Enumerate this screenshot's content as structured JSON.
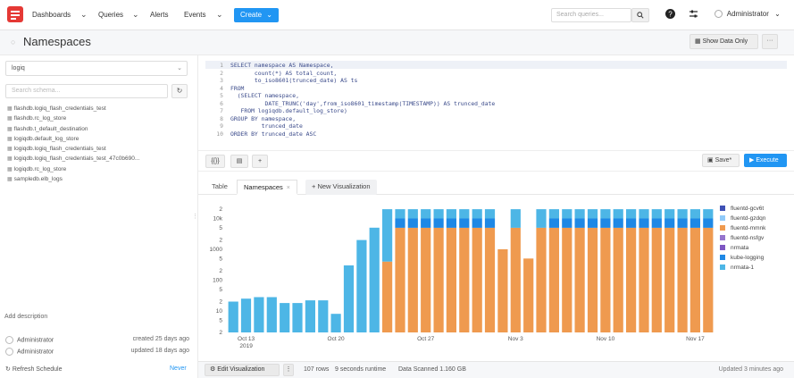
{
  "nav": {
    "items": [
      {
        "label": "Dashboards",
        "has_caret": true
      },
      {
        "label": "Queries",
        "has_caret": true
      },
      {
        "label": "Alerts",
        "has_caret": false
      },
      {
        "label": "Events",
        "has_caret": true
      }
    ],
    "create_label": "Create",
    "search_placeholder": "Search queries...",
    "search_icon": "search-icon",
    "help_icon": "help-icon",
    "settings_icon": "settings-icon",
    "user_name": "Administrator"
  },
  "page": {
    "title": "Namespaces",
    "show_data_label": "Show Data Only",
    "more_label": "···"
  },
  "sidebar": {
    "datasource": "logiq",
    "schema_search_placeholder": "Search schema...",
    "tables": [
      "flashdb.logiq_flash_credentials_test",
      "flashdb.rc_log_store",
      "flashdb.t_default_destination",
      "logiqdb.default_log_store",
      "logiqdb.logiq_flash_credentials_test",
      "logiqdb.logiq_flash_credentials_test_47c0b690...",
      "logiqdb.rc_log_store",
      "sampledb.elb_logs"
    ],
    "add_description": "Add description",
    "created_by": "Administrator",
    "created_when": "created 25 days ago",
    "updated_by": "Administrator",
    "updated_when": "updated 18 days ago",
    "refresh_schedule": "Refresh Schedule",
    "refresh_value": "Never"
  },
  "editor": {
    "lines": [
      "SELECT namespace AS Namespace,",
      "       count(*) AS total_count,",
      "       to_iso8601(trunced_date) AS ts",
      "FROM",
      "  (SELECT namespace,",
      "          DATE_TRUNC('day',from_iso8601_timestamp(TIMESTAMP)) AS trunced_date",
      "   FROM logiqdb.default_log_store)",
      "GROUP BY namespace,",
      "         trunced_date",
      "ORDER BY trunced_date ASC"
    ],
    "toolbar": {
      "format_label": "{{}}",
      "schema_label": "▤",
      "add_label": "+"
    },
    "save_label": "Save*",
    "execute_label": "Execute"
  },
  "results": {
    "tabs": [
      {
        "label": "Table",
        "active": false
      },
      {
        "label": "Namespaces",
        "active": true,
        "closable": "×"
      },
      {
        "label": "+ New Visualization",
        "active": false
      }
    ]
  },
  "footer": {
    "edit_vis_label": "Edit Visualization",
    "more_label": "⋮",
    "rows": "107 rows",
    "runtime": "9 seconds runtime",
    "scanned": "Data Scanned 1.160 GB",
    "updated": "Updated 3 minutes ago"
  },
  "chart_data": {
    "type": "bar",
    "stacked": true,
    "log_scale": true,
    "y_ticks": [
      "2",
      "10k",
      "5",
      "2",
      "1000",
      "5",
      "2",
      "100",
      "5",
      "2",
      "10",
      "5",
      "2"
    ],
    "x_ticks": [
      "Oct 13\n2019",
      "Oct 20",
      "Oct 27",
      "Nov 3",
      "Nov 10",
      "Nov 17"
    ],
    "legend_position": "right",
    "series": [
      {
        "name": "fluentd-gcv6t",
        "color": "#3f51b5"
      },
      {
        "name": "fluentd-gzdqn",
        "color": "#90caf9"
      },
      {
        "name": "fluentd-mmnk",
        "color": "#ef9a4f"
      },
      {
        "name": "fluentd-nsfgv",
        "color": "#9575cd"
      },
      {
        "name": "nrmata",
        "color": "#7e57c2"
      },
      {
        "name": "kube-logging",
        "color": "#1e88e5"
      },
      {
        "name": "nrmata-1",
        "color": "#4db6e6"
      }
    ],
    "bars": [
      {
        "date": "Oct 12",
        "segments": {
          "nrmata-1": 20
        }
      },
      {
        "date": "Oct 13",
        "segments": {
          "nrmata-1": 25
        }
      },
      {
        "date": "Oct 14",
        "segments": {
          "nrmata-1": 28
        }
      },
      {
        "date": "Oct 15",
        "segments": {
          "nrmata-1": 28
        }
      },
      {
        "date": "Oct 16",
        "segments": {
          "nrmata-1": 18
        }
      },
      {
        "date": "Oct 17",
        "segments": {
          "nrmata-1": 18
        }
      },
      {
        "date": "Oct 18",
        "segments": {
          "nrmata-1": 22
        }
      },
      {
        "date": "Oct 19",
        "segments": {
          "nrmata-1": 22
        }
      },
      {
        "date": "Oct 20",
        "segments": {
          "nrmata-1": 8
        }
      },
      {
        "date": "Oct 21",
        "segments": {
          "nrmata-1": 300
        }
      },
      {
        "date": "Oct 22",
        "segments": {
          "nrmata-1": 2000
        }
      },
      {
        "date": "Oct 23",
        "segments": {
          "nrmata-1": 5000
        }
      },
      {
        "date": "Oct 24",
        "segments": {
          "fluentd-mmnk": 400,
          "nrmata-1": 20000
        }
      },
      {
        "date": "Oct 25",
        "segments": {
          "fluentd-mmnk": 5000,
          "kube-logging": 10000,
          "nrmata-1": 20000
        }
      },
      {
        "date": "Oct 26",
        "segments": {
          "fluentd-mmnk": 5000,
          "kube-logging": 10000,
          "nrmata-1": 20000
        }
      },
      {
        "date": "Oct 27",
        "segments": {
          "fluentd-mmnk": 5000,
          "kube-logging": 10000,
          "nrmata-1": 20000
        }
      },
      {
        "date": "Oct 28",
        "segments": {
          "fluentd-mmnk": 5000,
          "kube-logging": 10000,
          "nrmata-1": 20000
        }
      },
      {
        "date": "Oct 29",
        "segments": {
          "fluentd-mmnk": 5000,
          "kube-logging": 10000,
          "nrmata-1": 20000
        }
      },
      {
        "date": "Oct 30",
        "segments": {
          "fluentd-mmnk": 5000,
          "kube-logging": 10000,
          "nrmata-1": 20000
        }
      },
      {
        "date": "Oct 31",
        "segments": {
          "fluentd-mmnk": 5000,
          "kube-logging": 10000,
          "nrmata-1": 20000
        }
      },
      {
        "date": "Nov 1",
        "segments": {
          "fluentd-mmnk": 5000,
          "kube-logging": 10000,
          "nrmata-1": 20000
        }
      },
      {
        "date": "Nov 2",
        "segments": {
          "fluentd-mmnk": 1000
        }
      },
      {
        "date": "Nov 3",
        "segments": {
          "fluentd-mmnk": 5000,
          "nrmata-1": 20000
        }
      },
      {
        "date": "Nov 4",
        "segments": {
          "fluentd-mmnk": 500
        }
      },
      {
        "date": "Nov 5",
        "segments": {
          "fluentd-mmnk": 5000,
          "nrmata-1": 20000
        }
      },
      {
        "date": "Nov 6",
        "segments": {
          "fluentd-mmnk": 5000,
          "kube-logging": 10000,
          "nrmata-1": 20000
        }
      },
      {
        "date": "Nov 7",
        "segments": {
          "fluentd-mmnk": 5000,
          "kube-logging": 10000,
          "nrmata-1": 20000
        }
      },
      {
        "date": "Nov 8",
        "segments": {
          "fluentd-mmnk": 5000,
          "kube-logging": 10000,
          "nrmata-1": 20000
        }
      },
      {
        "date": "Nov 9",
        "segments": {
          "fluentd-mmnk": 5000,
          "kube-logging": 10000,
          "nrmata-1": 20000
        }
      },
      {
        "date": "Nov 10",
        "segments": {
          "fluentd-mmnk": 5000,
          "kube-logging": 10000,
          "nrmata-1": 20000
        }
      },
      {
        "date": "Nov 11",
        "segments": {
          "fluentd-mmnk": 5000,
          "kube-logging": 10000,
          "nrmata-1": 20000
        }
      },
      {
        "date": "Nov 12",
        "segments": {
          "fluentd-mmnk": 5000,
          "kube-logging": 10000,
          "nrmata-1": 20000
        }
      },
      {
        "date": "Nov 13",
        "segments": {
          "fluentd-mmnk": 5000,
          "kube-logging": 10000,
          "nrmata-1": 20000
        }
      },
      {
        "date": "Nov 14",
        "segments": {
          "fluentd-mmnk": 5000,
          "kube-logging": 10000,
          "nrmata-1": 20000
        }
      },
      {
        "date": "Nov 15",
        "segments": {
          "fluentd-mmnk": 5000,
          "kube-logging": 10000,
          "nrmata-1": 20000
        }
      },
      {
        "date": "Nov 16",
        "segments": {
          "fluentd-mmnk": 5000,
          "kube-logging": 10000,
          "nrmata-1": 20000
        }
      },
      {
        "date": "Nov 17",
        "segments": {
          "fluentd-mmnk": 5000,
          "kube-logging": 10000,
          "nrmata-1": 20000
        }
      },
      {
        "date": "Nov 18",
        "segments": {
          "fluentd-mmnk": 5000,
          "kube-logging": 10000,
          "nrmata-1": 20000
        }
      }
    ]
  }
}
